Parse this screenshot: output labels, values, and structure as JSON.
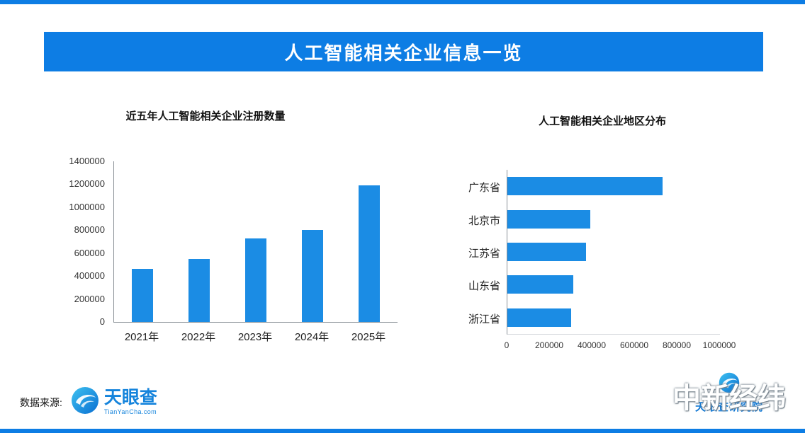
{
  "header": {
    "title": "人工智能相关企业信息一览"
  },
  "colors": {
    "accent": "#0d7de4",
    "bar": "#1b8ce4"
  },
  "icons": {
    "tyc_logo": "tianyancha-swirl-logo",
    "research_logo": "tianyancha-research-swirl-logo"
  },
  "footer": {
    "source_label": "数据来源:",
    "tyc_logo_text": "天眼查",
    "tyc_logo_sub": "TianYanCha.com",
    "research_logo_text": "天眼查研究院",
    "watermark": "中新经纬"
  },
  "chart_data": [
    {
      "type": "bar",
      "title": "近五年人工智能相关企业注册数量",
      "categories": [
        "2021年",
        "2022年",
        "2023年",
        "2024年",
        "2025年"
      ],
      "values": [
        460000,
        550000,
        730000,
        800000,
        1190000
      ],
      "xlabel": "",
      "ylabel": "",
      "ylim": [
        0,
        1400000
      ],
      "yticks": [
        0,
        200000,
        400000,
        600000,
        800000,
        1000000,
        1200000,
        1400000
      ],
      "grid": false,
      "legend": "none",
      "bar_color": "#1b8ce4"
    },
    {
      "type": "bar",
      "orientation": "horizontal",
      "title": "人工智能相关企业地区分布",
      "categories": [
        "广东省",
        "北京市",
        "江苏省",
        "山东省",
        "浙江省"
      ],
      "values": [
        730000,
        390000,
        370000,
        310000,
        300000
      ],
      "xlabel": "",
      "ylabel": "",
      "xlim": [
        0,
        1000000
      ],
      "xticks": [
        0,
        200000,
        400000,
        600000,
        800000,
        1000000
      ],
      "grid": false,
      "legend": "none",
      "bar_color": "#1b8ce4"
    }
  ]
}
